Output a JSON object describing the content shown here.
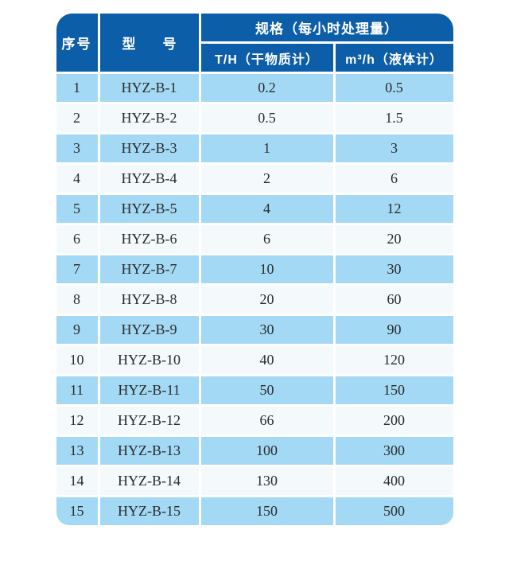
{
  "colors": {
    "header_bg": "#0d5ea8",
    "header_text": "#ffffff",
    "row_odd_bg": "#a3d9f5",
    "row_even_bg": "#f4fafc",
    "body_text": "#2b2b2b",
    "divider": "#ffffff",
    "page_bg": "#ffffff"
  },
  "table": {
    "header": {
      "serial": "序号",
      "model": "型　　号",
      "spec_group": "规格（每小时处理量）",
      "th_dry": "T/H（干物质计）",
      "m3h_liquid": "m³/h（液体计）"
    },
    "rows": [
      {
        "index": "1",
        "model": "HYZ-B-1",
        "th": "0.2",
        "m3h": "0.5"
      },
      {
        "index": "2",
        "model": "HYZ-B-2",
        "th": "0.5",
        "m3h": "1.5"
      },
      {
        "index": "3",
        "model": "HYZ-B-3",
        "th": "1",
        "m3h": "3"
      },
      {
        "index": "4",
        "model": "HYZ-B-4",
        "th": "2",
        "m3h": "6"
      },
      {
        "index": "5",
        "model": "HYZ-B-5",
        "th": "4",
        "m3h": "12"
      },
      {
        "index": "6",
        "model": "HYZ-B-6",
        "th": "6",
        "m3h": "20"
      },
      {
        "index": "7",
        "model": "HYZ-B-7",
        "th": "10",
        "m3h": "30"
      },
      {
        "index": "8",
        "model": "HYZ-B-8",
        "th": "20",
        "m3h": "60"
      },
      {
        "index": "9",
        "model": "HYZ-B-9",
        "th": "30",
        "m3h": "90"
      },
      {
        "index": "10",
        "model": "HYZ-B-10",
        "th": "40",
        "m3h": "120"
      },
      {
        "index": "11",
        "model": "HYZ-B-11",
        "th": "50",
        "m3h": "150"
      },
      {
        "index": "12",
        "model": "HYZ-B-12",
        "th": "66",
        "m3h": "200"
      },
      {
        "index": "13",
        "model": "HYZ-B-13",
        "th": "100",
        "m3h": "300"
      },
      {
        "index": "14",
        "model": "HYZ-B-14",
        "th": "130",
        "m3h": "400"
      },
      {
        "index": "15",
        "model": "HYZ-B-15",
        "th": "150",
        "m3h": "500"
      }
    ]
  }
}
